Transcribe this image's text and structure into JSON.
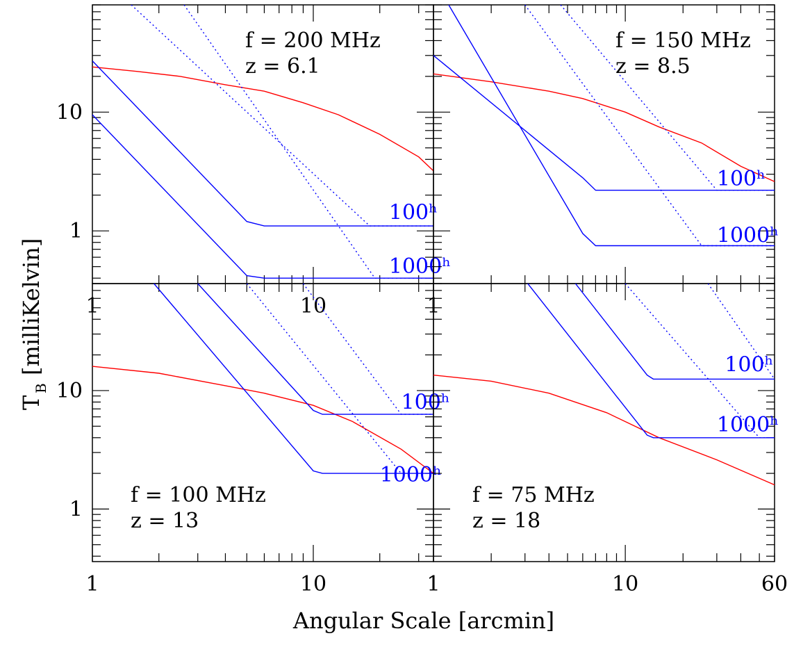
{
  "figure": {
    "xlabel": "Angular Scale [arcmin]",
    "ylabel_main": "T",
    "ylabel_sub": "B",
    "ylabel_rest": "[milliKelvin]",
    "colors": {
      "signal": "#ff0000",
      "noise": "#0000ff",
      "axes": "#000000"
    }
  },
  "chart_data": [
    {
      "type": "line",
      "panel": "top-left",
      "annotation": [
        "f = 200 MHz",
        "z = 6.1"
      ],
      "xscale": "log",
      "yscale": "log",
      "xlim": [
        1,
        35
      ],
      "ylim": [
        0.36,
        80
      ],
      "xtick_labels": [
        "1",
        "10",
        "1"
      ],
      "ytick_labels": [
        "1",
        "10"
      ],
      "series": [
        {
          "style": "solid",
          "color": "#ff0000",
          "x": [
            1,
            1.6,
            2.5,
            4,
            6,
            9,
            13,
            20,
            30,
            35
          ],
          "y": [
            24,
            22,
            20,
            17,
            15,
            12,
            9.5,
            6.5,
            4.2,
            3.2
          ]
        },
        {
          "style": "solid",
          "color": "#0000ff",
          "label": "100ʰ",
          "x": [
            1,
            5,
            6,
            35
          ],
          "y": [
            27,
            1.2,
            1.1,
            1.1
          ]
        },
        {
          "style": "solid",
          "color": "#0000ff",
          "label": "1000ʰ",
          "x": [
            1,
            5,
            6,
            35
          ],
          "y": [
            9.5,
            0.42,
            0.4,
            0.4
          ]
        },
        {
          "style": "dotted",
          "color": "#0000ff",
          "x": [
            1.5,
            18,
            35
          ],
          "y": [
            80,
            1.1,
            1.1
          ]
        },
        {
          "style": "dotted",
          "color": "#0000ff",
          "x": [
            2.6,
            19,
            35
          ],
          "y": [
            80,
            0.4,
            0.4
          ]
        }
      ],
      "line_labels": [
        {
          "text": "100ʰ",
          "x": 22,
          "y": 1.25
        },
        {
          "text": "1000ʰ",
          "x": 22,
          "y": 0.44
        }
      ]
    },
    {
      "type": "line",
      "panel": "top-right",
      "annotation": [
        "f = 150 MHz",
        "z = 8.5"
      ],
      "xscale": "log",
      "yscale": "log",
      "xlim": [
        1,
        60
      ],
      "ylim": [
        0.36,
        80
      ],
      "xtick_labels": [],
      "ytick_labels": [],
      "series": [
        {
          "style": "solid",
          "color": "#ff0000",
          "x": [
            1,
            2,
            4,
            6,
            10,
            15,
            25,
            40,
            60
          ],
          "y": [
            21,
            18,
            15,
            13,
            10,
            7.5,
            5.5,
            3.5,
            2.6
          ]
        },
        {
          "style": "solid",
          "color": "#0000ff",
          "label": "100ʰ",
          "x": [
            1,
            6,
            7,
            60
          ],
          "y": [
            30,
            2.8,
            2.2,
            2.2
          ]
        },
        {
          "style": "solid",
          "color": "#0000ff",
          "label": "1000ʰ",
          "x": [
            1.2,
            6,
            7,
            60
          ],
          "y": [
            80,
            0.95,
            0.75,
            0.75
          ]
        },
        {
          "style": "dotted",
          "color": "#0000ff",
          "x": [
            3,
            25,
            60
          ],
          "y": [
            80,
            0.75,
            0.75
          ]
        },
        {
          "style": "dotted",
          "color": "#0000ff",
          "x": [
            4.6,
            30,
            60
          ],
          "y": [
            80,
            2.2,
            2.2
          ]
        }
      ],
      "line_labels": [
        {
          "text": "100ʰ",
          "x": 30,
          "y": 2.4
        },
        {
          "text": "1000ʰ",
          "x": 30,
          "y": 0.8
        }
      ]
    },
    {
      "type": "line",
      "panel": "bottom-left",
      "annotation": [
        "f = 100 MHz",
        "z = 13"
      ],
      "xscale": "log",
      "yscale": "log",
      "xlim": [
        1,
        35
      ],
      "ylim": [
        0.36,
        80
      ],
      "xtick_labels": [
        "1",
        "10",
        "1"
      ],
      "ytick_labels": [
        "1",
        "10"
      ],
      "series": [
        {
          "style": "solid",
          "color": "#ff0000",
          "x": [
            1,
            2,
            4,
            6,
            10,
            15,
            25,
            35
          ],
          "y": [
            16,
            14,
            11,
            9.5,
            7.5,
            5.5,
            3.2,
            2
          ]
        },
        {
          "style": "solid",
          "color": "#0000ff",
          "label": "100ʰ",
          "x": [
            3,
            10,
            11,
            35
          ],
          "y": [
            80,
            6.8,
            6.3,
            6.3
          ]
        },
        {
          "style": "solid",
          "color": "#0000ff",
          "label": "1000ʰ",
          "x": [
            1.9,
            10,
            11,
            35
          ],
          "y": [
            80,
            2.1,
            2,
            2
          ]
        },
        {
          "style": "dotted",
          "color": "#0000ff",
          "x": [
            5,
            25
          ],
          "y": [
            80,
            2
          ]
        },
        {
          "style": "dotted",
          "color": "#0000ff",
          "x": [
            9,
            25,
            35
          ],
          "y": [
            80,
            6.3,
            6.3
          ]
        }
      ],
      "line_labels": [
        {
          "text": "100ʰ",
          "x": 25,
          "y": 7
        },
        {
          "text": "1000ʰ",
          "x": 20,
          "y": 1.7
        }
      ]
    },
    {
      "type": "line",
      "panel": "bottom-right",
      "annotation": [
        "f = 75 MHz",
        "z = 18"
      ],
      "xscale": "log",
      "yscale": "log",
      "xlim": [
        1,
        60
      ],
      "ylim": [
        0.36,
        80
      ],
      "xtick_labels": [
        "1",
        "10",
        "60"
      ],
      "ytick_labels": [],
      "series": [
        {
          "style": "solid",
          "color": "#ff0000",
          "x": [
            1,
            2,
            4,
            8,
            15,
            30,
            60
          ],
          "y": [
            13.5,
            12,
            9.5,
            6.5,
            4,
            2.6,
            1.6
          ]
        },
        {
          "style": "solid",
          "color": "#0000ff",
          "label": "100ʰ",
          "x": [
            5.5,
            13,
            14,
            60
          ],
          "y": [
            80,
            13.5,
            12.5,
            12.5
          ]
        },
        {
          "style": "solid",
          "color": "#0000ff",
          "label": "1000ʰ",
          "x": [
            3.1,
            13,
            14,
            60
          ],
          "y": [
            80,
            4.2,
            4,
            4
          ]
        },
        {
          "style": "dotted",
          "color": "#0000ff",
          "x": [
            10,
            50,
            60
          ],
          "y": [
            80,
            4,
            4
          ]
        },
        {
          "style": "dotted",
          "color": "#0000ff",
          "x": [
            27,
            60
          ],
          "y": [
            80,
            12.5
          ]
        }
      ],
      "line_labels": [
        {
          "text": "100ʰ",
          "x": 33,
          "y": 14.5
        },
        {
          "text": "1000ʰ",
          "x": 30,
          "y": 4.5
        }
      ]
    }
  ]
}
